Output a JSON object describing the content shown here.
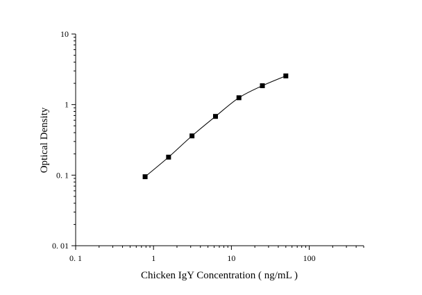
{
  "chart_data": {
    "type": "scatter",
    "title": "",
    "xlabel": "Chicken IgY Concentration ( ng/mL )",
    "ylabel": "Optical Density",
    "xscale": "log",
    "yscale": "log",
    "xlim": [
      0.1,
      500
    ],
    "ylim": [
      0.01,
      10
    ],
    "x_ticks": [
      0.1,
      1,
      10,
      100
    ],
    "x_tick_labels": [
      "0. 1",
      "1",
      "10",
      "100"
    ],
    "y_ticks": [
      0.01,
      0.1,
      1,
      10
    ],
    "y_tick_labels": [
      "0. 01",
      "0. 1",
      "1",
      "10"
    ],
    "grid": false,
    "legend": "none",
    "series": [
      {
        "x": [
          0.78,
          1.56,
          3.12,
          6.25,
          12.5,
          25,
          50
        ],
        "y": [
          0.095,
          0.18,
          0.36,
          0.68,
          1.25,
          1.85,
          2.55
        ],
        "marker": "square",
        "fit_line": true,
        "color": "#000000"
      }
    ]
  }
}
